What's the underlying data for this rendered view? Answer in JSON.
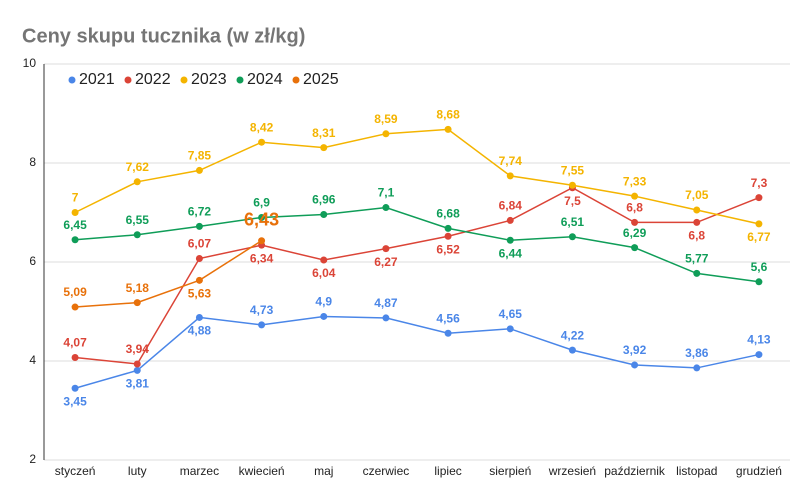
{
  "chart_data": {
    "type": "line",
    "title": "Ceny skupu tucznika (w zł/kg)",
    "categories": [
      "styczeń",
      "luty",
      "marzec",
      "kwiecień",
      "maj",
      "czerwiec",
      "lipiec",
      "sierpień",
      "wrzesień",
      "październik",
      "listopad",
      "grudzień"
    ],
    "ylim": [
      2,
      10
    ],
    "yticks": [
      2,
      4,
      6,
      8,
      10
    ],
    "grid": true,
    "legend": "top-left",
    "series": [
      {
        "name": "2021",
        "color": "#4a86e8",
        "values": [
          3.45,
          3.81,
          4.88,
          4.73,
          4.9,
          4.87,
          4.56,
          4.65,
          4.22,
          3.92,
          3.86,
          4.13
        ],
        "value_labels": [
          "3,45",
          "3,81",
          "4,88",
          "4,73",
          "4,9",
          "4,87",
          "4,56",
          "4,65",
          "4,22",
          "3,92",
          "3,86",
          "4,13"
        ]
      },
      {
        "name": "2022",
        "color": "#db4437",
        "values": [
          4.07,
          3.94,
          6.07,
          6.34,
          6.04,
          6.27,
          6.52,
          6.84,
          7.5,
          6.8,
          6.8,
          7.3
        ],
        "value_labels": [
          "4,07",
          "3,94",
          "6,07",
          "6,34",
          "6,04",
          "6,27",
          "6,52",
          "6,84",
          "7,5",
          "6,8",
          "6,8",
          "7,3"
        ]
      },
      {
        "name": "2023",
        "color": "#f4b400",
        "values": [
          7,
          7.62,
          7.85,
          8.42,
          8.31,
          8.59,
          8.68,
          7.74,
          7.55,
          7.33,
          7.05,
          6.77
        ],
        "value_labels": [
          "7",
          "7,62",
          "7,85",
          "8,42",
          "8,31",
          "8,59",
          "8,68",
          "7,74",
          "7,55",
          "7,33",
          "7,05",
          "6,77"
        ]
      },
      {
        "name": "2024",
        "color": "#0f9d58",
        "values": [
          6.45,
          6.55,
          6.72,
          6.9,
          6.96,
          7.1,
          6.68,
          6.44,
          6.51,
          6.29,
          5.77,
          5.6
        ],
        "value_labels": [
          "6,45",
          "6,55",
          "6,72",
          "6,9",
          "6,96",
          "7,1",
          "6,68",
          "6,44",
          "6,51",
          "6,29",
          "5,77",
          "5,6"
        ]
      },
      {
        "name": "2025",
        "color": "#e8710a",
        "values": [
          5.09,
          5.18,
          5.63,
          6.43,
          null,
          null,
          null,
          null,
          null,
          null,
          null,
          null
        ],
        "value_labels": [
          "5,09",
          "5,18",
          "5,63",
          "6,43",
          null,
          null,
          null,
          null,
          null,
          null,
          null,
          null
        ]
      }
    ]
  }
}
